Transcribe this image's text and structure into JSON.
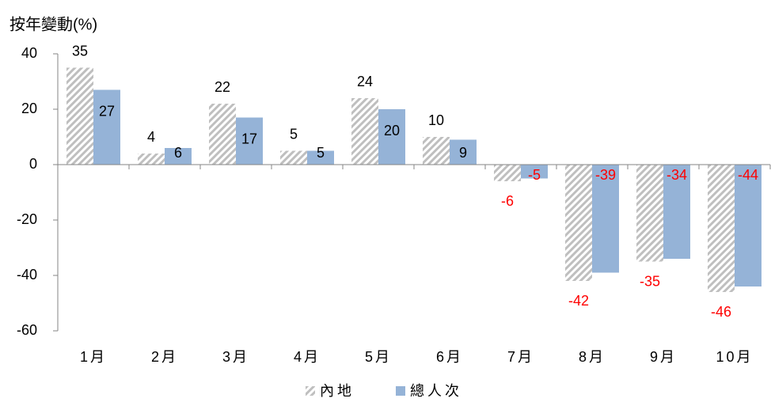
{
  "chart_data": {
    "type": "bar",
    "y_axis_title": "按年變動(%)",
    "categories": [
      "1月",
      "2月",
      "3月",
      "4月",
      "5月",
      "6月",
      "7月",
      "8月",
      "9月",
      "10月"
    ],
    "series": [
      {
        "name": "內地",
        "color": "#a6a6a6",
        "pattern": "hatch",
        "values": [
          35,
          4,
          22,
          5,
          24,
          10,
          -6,
          -42,
          -35,
          -46
        ]
      },
      {
        "name": "總人次",
        "color": "#95b3d7",
        "values": [
          27,
          6,
          17,
          5,
          20,
          9,
          -5,
          -39,
          -34,
          -44
        ]
      }
    ],
    "ylim": [
      -60,
      40
    ],
    "yticks": [
      -60,
      -40,
      -20,
      0,
      20,
      40
    ],
    "negative_label_color": "#ff0000",
    "legend": "bottom"
  }
}
